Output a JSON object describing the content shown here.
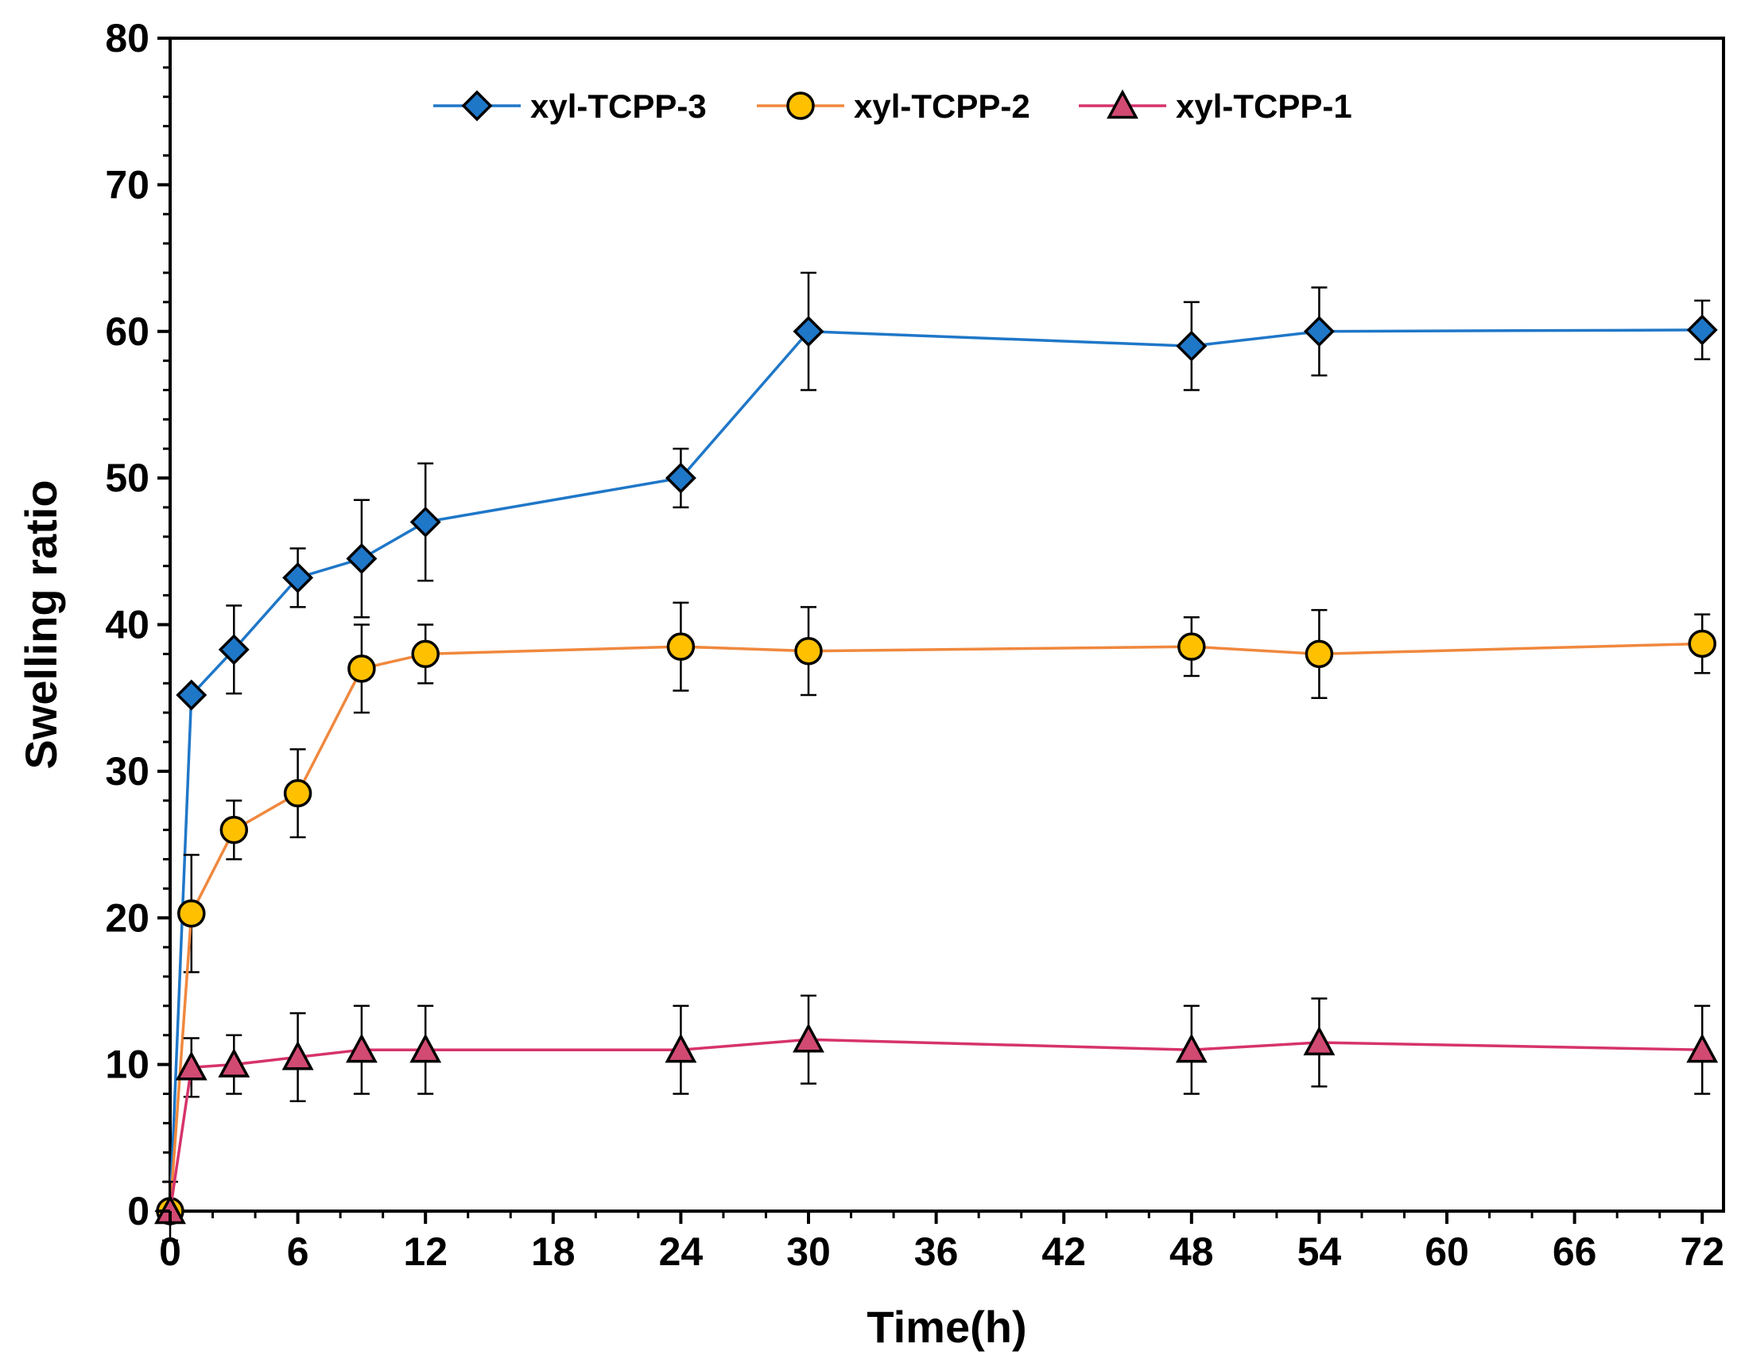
{
  "chart_data": {
    "type": "line",
    "title": "",
    "xlabel": "Time(h)",
    "ylabel": "Swelling ratio",
    "xlim": [
      0,
      73
    ],
    "ylim": [
      0,
      80
    ],
    "xticks": [
      0,
      6,
      12,
      18,
      24,
      30,
      36,
      42,
      48,
      54,
      60,
      66,
      72
    ],
    "yticks": [
      0,
      10,
      20,
      30,
      40,
      50,
      60,
      70,
      80
    ],
    "grid": false,
    "legend_position": "top",
    "series": [
      {
        "name": "xyl-TCPP-3",
        "color": "#1f77c8",
        "marker": "diamond",
        "marker_fill": "#1f77c8",
        "x": [
          0,
          1,
          3,
          6,
          9,
          12,
          24,
          30,
          48,
          54,
          72
        ],
        "y": [
          0,
          35.2,
          38.3,
          43.2,
          44.5,
          47,
          50,
          60,
          59,
          60,
          60.1
        ],
        "err": [
          0,
          0,
          3,
          2,
          4,
          4,
          2,
          4,
          3,
          3,
          2
        ]
      },
      {
        "name": "xyl-TCPP-2",
        "color": "#f0883e",
        "marker": "circle",
        "marker_fill": "#ffc000",
        "x": [
          0,
          1,
          3,
          6,
          9,
          12,
          24,
          30,
          48,
          54,
          72
        ],
        "y": [
          0,
          20.3,
          26,
          28.5,
          37,
          38,
          38.5,
          38.2,
          38.5,
          38,
          38.7
        ],
        "err": [
          0,
          4,
          2,
          3,
          3,
          2,
          3,
          3,
          2,
          3,
          2
        ]
      },
      {
        "name": "xyl-TCPP-1",
        "color": "#d6336c",
        "marker": "triangle",
        "marker_fill": "#d14a72",
        "x": [
          0,
          1,
          3,
          6,
          9,
          12,
          24,
          30,
          48,
          54,
          72
        ],
        "y": [
          0,
          9.8,
          10,
          10.5,
          11,
          11,
          11,
          11.7,
          11,
          11.5,
          11
        ],
        "err": [
          2,
          2,
          2,
          3,
          3,
          3,
          3,
          3,
          3,
          3,
          3
        ]
      }
    ]
  }
}
